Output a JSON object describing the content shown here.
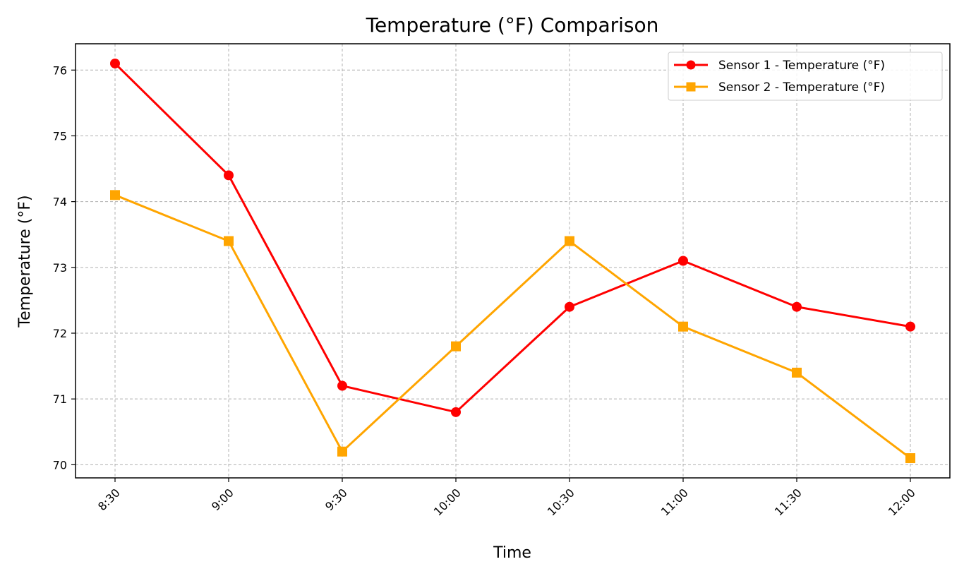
{
  "chart_data": {
    "type": "line",
    "title": "Temperature (°F) Comparison",
    "xlabel": "Time",
    "ylabel": "Temperature (°F)",
    "categories": [
      "8:30",
      "9:00",
      "9:30",
      "10:00",
      "10:30",
      "11:00",
      "11:30",
      "12:00"
    ],
    "ylim": [
      69.8,
      76.4
    ],
    "yticks": [
      70,
      71,
      72,
      73,
      74,
      75,
      76
    ],
    "grid": true,
    "legend_position": "top-right",
    "series": [
      {
        "name": "Sensor 1 - Temperature (°F)",
        "values": [
          76.1,
          74.4,
          71.2,
          70.8,
          72.4,
          73.1,
          72.4,
          72.1
        ],
        "color": "#ff0000",
        "marker": "circle"
      },
      {
        "name": "Sensor 2 - Temperature (°F)",
        "values": [
          74.1,
          73.4,
          70.2,
          71.8,
          73.4,
          72.1,
          71.4,
          70.1
        ],
        "color": "#ffa500",
        "marker": "square"
      }
    ]
  }
}
